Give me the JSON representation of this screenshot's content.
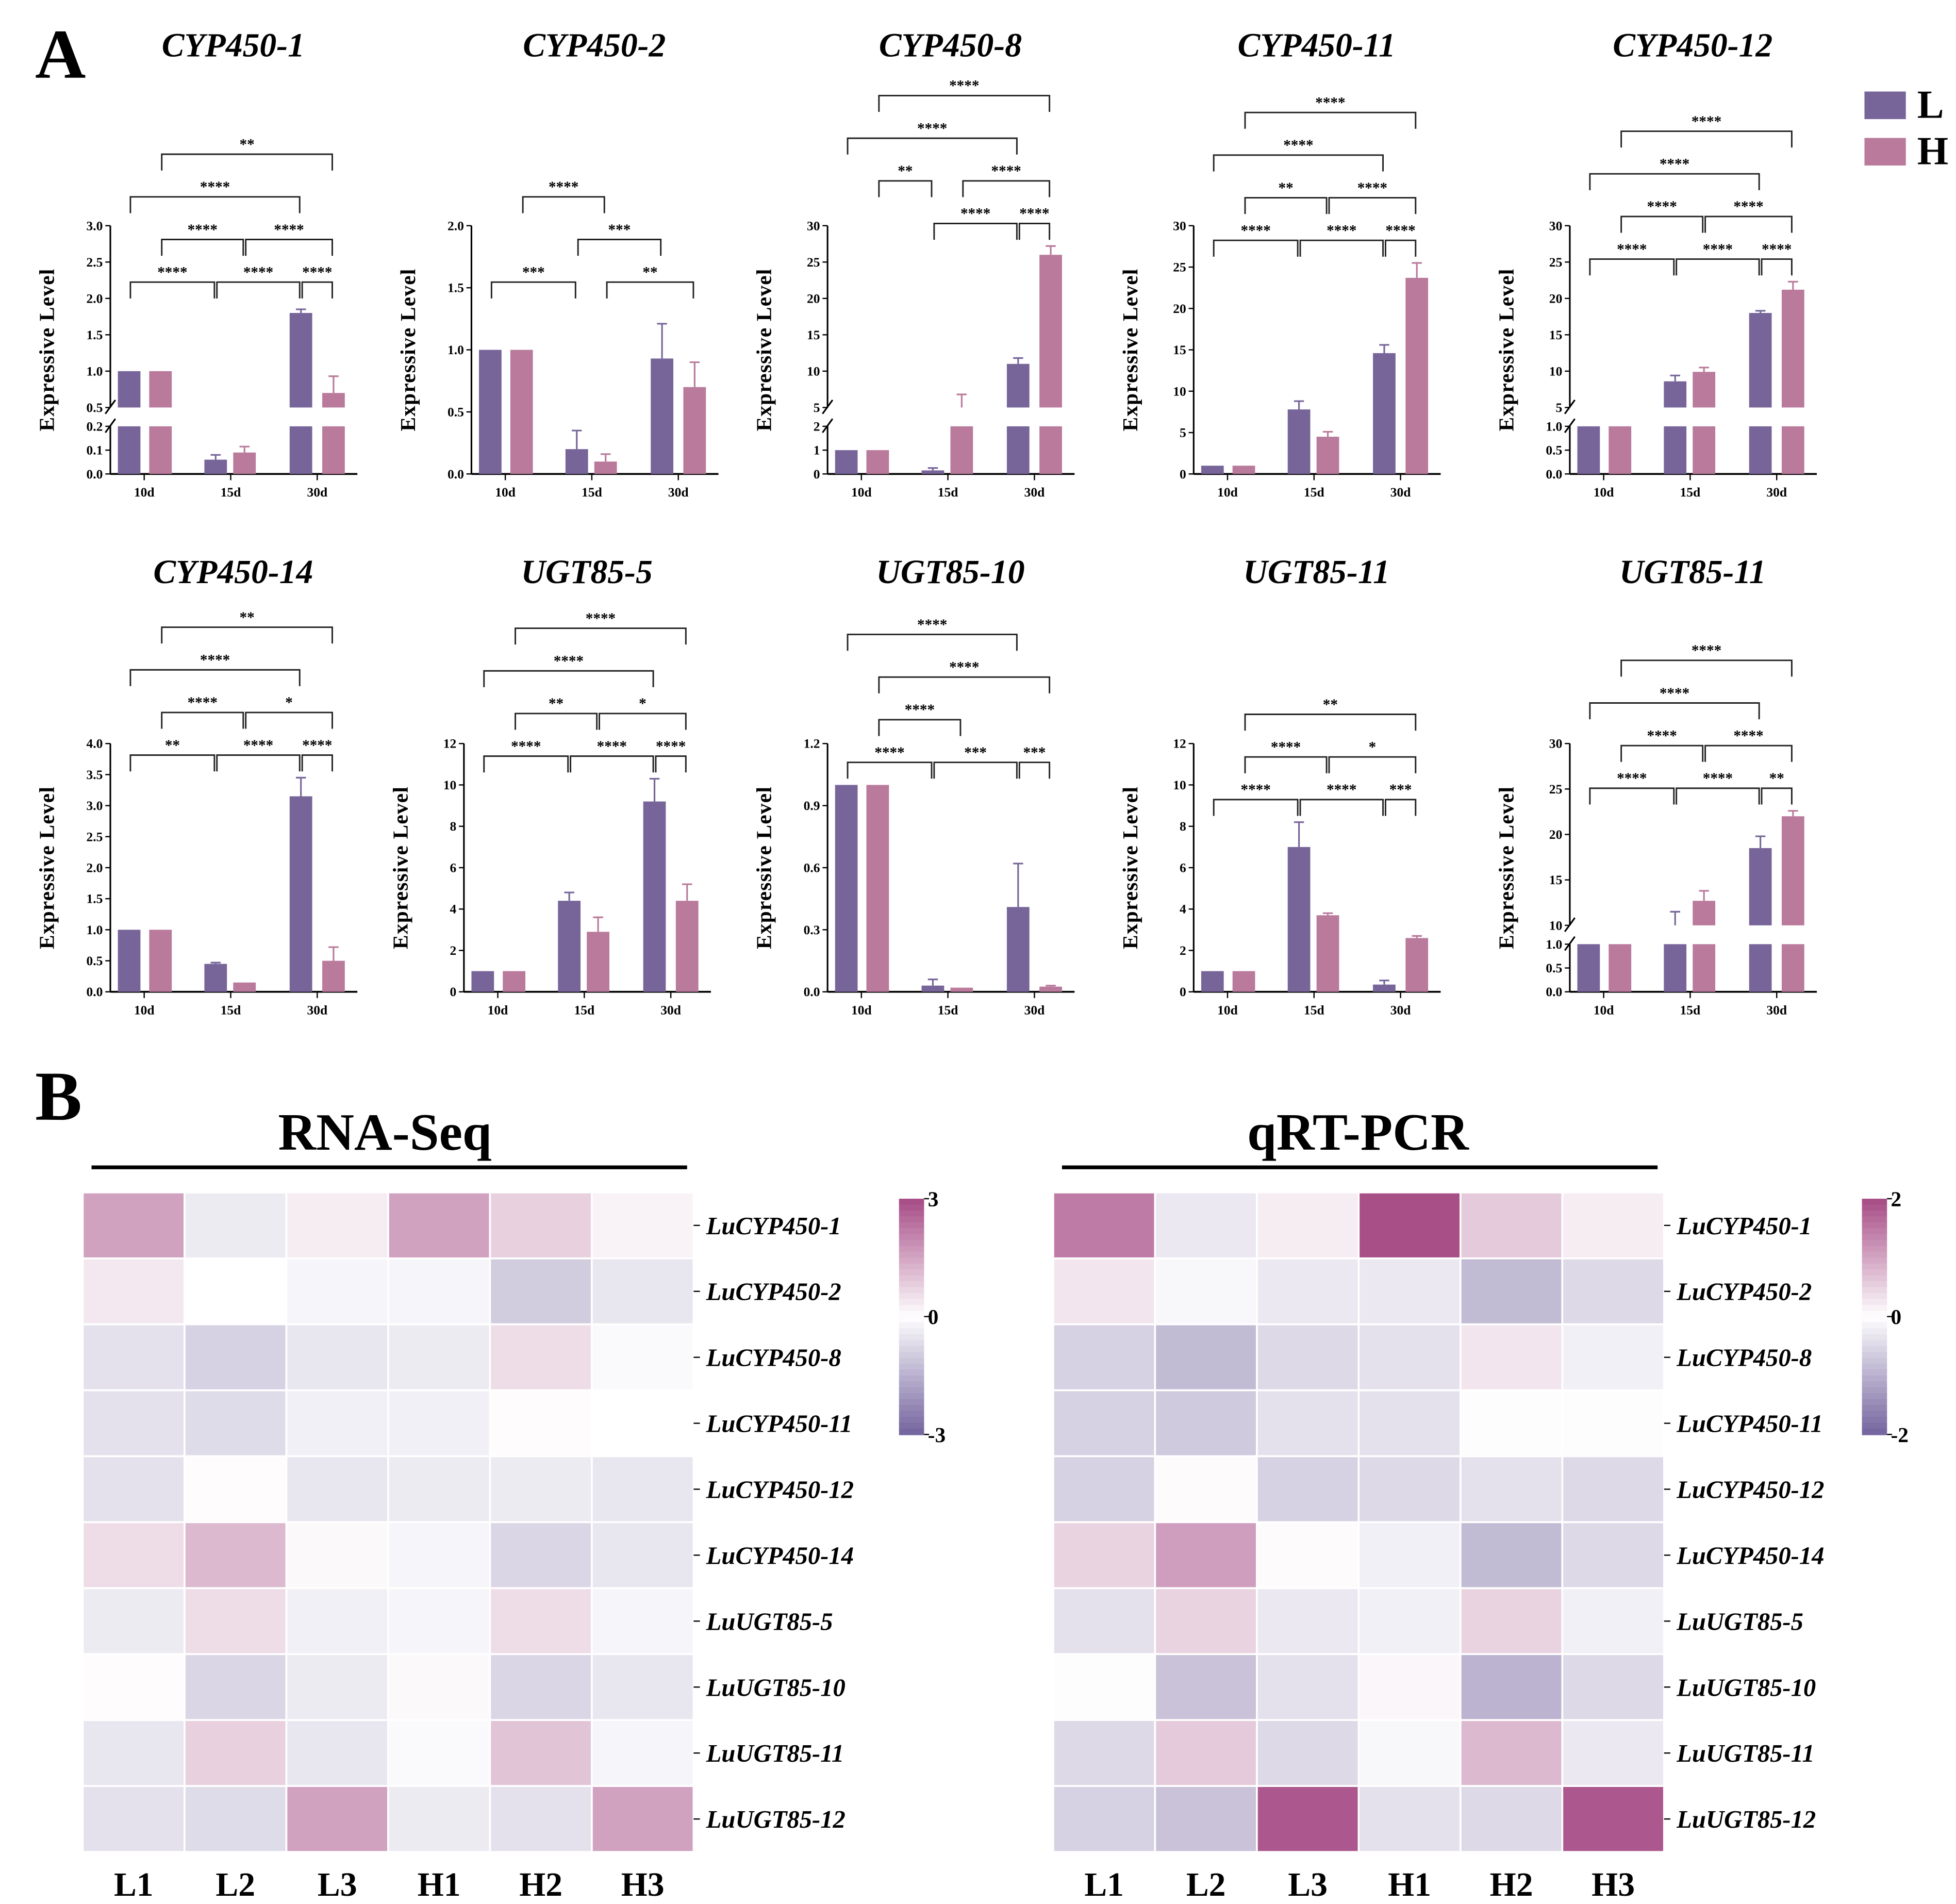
{
  "panel_labels": {
    "a": "A",
    "b": "B"
  },
  "legend": [
    {
      "label": "L",
      "color": "#77659a"
    },
    {
      "label": "H",
      "color": "#b97a9c"
    }
  ],
  "colors": {
    "L": "#77659a",
    "H": "#b97a9c",
    "heat_high": "#a84f88",
    "heat_mid": "#ffffff",
    "heat_low": "#7767a0"
  },
  "chart_data": [
    {
      "type": "bar",
      "title": "CYP450-1",
      "ylabel": "Expressive Level",
      "categories": [
        "10d",
        "15d",
        "30d"
      ],
      "broken": true,
      "yticks_lower": [
        "0.0",
        "0.1",
        "0.2"
      ],
      "yticks": [
        "0.5",
        "1.0",
        "1.5",
        "2.0",
        "2.5",
        "3.0"
      ],
      "series": [
        {
          "name": "L",
          "values": [
            1,
            0.06,
            1.8
          ],
          "errors": [
            0,
            0.02,
            0.05
          ]
        },
        {
          "name": "H",
          "values": [
            1,
            0.09,
            0.7
          ],
          "errors": [
            0,
            0.025,
            0.23
          ]
        }
      ],
      "significance": [
        {
          "from": 0,
          "to": 2,
          "level": 0,
          "label": "****"
        },
        {
          "from": 2,
          "to": 4,
          "level": 0,
          "label": "****"
        },
        {
          "from": 4,
          "to": 5,
          "level": 0,
          "label": "****"
        },
        {
          "from": 1,
          "to": 3,
          "level": 1,
          "label": "****"
        },
        {
          "from": 3,
          "to": 5,
          "level": 1,
          "label": "****"
        },
        {
          "from": 0,
          "to": 4,
          "level": 2,
          "label": "****"
        },
        {
          "from": 1,
          "to": 5,
          "level": 3,
          "label": "**"
        }
      ]
    },
    {
      "type": "bar",
      "title": "CYP450-2",
      "ylabel": "Expressive Level",
      "categories": [
        "10d",
        "15d",
        "30d"
      ],
      "broken": false,
      "yticks": [
        "0.0",
        "0.5",
        "1.0",
        "1.5",
        "2.0"
      ],
      "series": [
        {
          "name": "L",
          "values": [
            1,
            0.2,
            0.93
          ],
          "errors": [
            0,
            0.15,
            0.28
          ]
        },
        {
          "name": "H",
          "values": [
            1,
            0.1,
            0.7
          ],
          "errors": [
            0,
            0.06,
            0.2
          ]
        }
      ],
      "significance": [
        {
          "from": 0,
          "to": 2,
          "level": 0,
          "label": "***"
        },
        {
          "from": 3,
          "to": 5,
          "level": 0,
          "label": "**"
        },
        {
          "from": 2,
          "to": 4,
          "level": 1,
          "label": "***"
        },
        {
          "from": 1,
          "to": 3,
          "level": 2,
          "label": "****"
        }
      ]
    },
    {
      "type": "bar",
      "title": "CYP450-8",
      "ylabel": "Expressive Level",
      "categories": [
        "10d",
        "15d",
        "30d"
      ],
      "broken": true,
      "yticks_lower": [
        "0",
        "1",
        "2"
      ],
      "yticks": [
        "5",
        "10",
        "15",
        "20",
        "25",
        "30"
      ],
      "series": [
        {
          "name": "L",
          "values": [
            1,
            0.15,
            11
          ],
          "errors": [
            0,
            0.1,
            0.8
          ]
        },
        {
          "name": "H",
          "values": [
            1,
            4.8,
            26
          ],
          "errors": [
            0,
            2,
            1.2
          ]
        }
      ],
      "significance": [
        {
          "from": 2,
          "to": 4,
          "level": 0,
          "label": "****"
        },
        {
          "from": 4,
          "to": 5,
          "level": 0,
          "label": "****"
        },
        {
          "from": 1,
          "to": 2,
          "level": 1,
          "label": "**"
        },
        {
          "from": 3,
          "to": 5,
          "level": 1,
          "label": "****"
        },
        {
          "from": 0,
          "to": 4,
          "level": 2,
          "label": "****"
        },
        {
          "from": 1,
          "to": 5,
          "level": 3,
          "label": "****"
        }
      ]
    },
    {
      "type": "bar",
      "title": "CYP450-11",
      "ylabel": "Expressive Level",
      "categories": [
        "10d",
        "15d",
        "30d"
      ],
      "broken": false,
      "yticks": [
        "0",
        "5",
        "10",
        "15",
        "20",
        "25",
        "30"
      ],
      "series": [
        {
          "name": "L",
          "values": [
            1,
            7.8,
            14.6
          ],
          "errors": [
            0,
            1,
            1
          ]
        },
        {
          "name": "H",
          "values": [
            1,
            4.5,
            23.7
          ],
          "errors": [
            0,
            0.6,
            1.8
          ]
        }
      ],
      "significance": [
        {
          "from": 0,
          "to": 2,
          "level": 0,
          "label": "****"
        },
        {
          "from": 2,
          "to": 4,
          "level": 0,
          "label": "****"
        },
        {
          "from": 4,
          "to": 5,
          "level": 0,
          "label": "****"
        },
        {
          "from": 1,
          "to": 3,
          "level": 1,
          "label": "**"
        },
        {
          "from": 3,
          "to": 5,
          "level": 1,
          "label": "****"
        },
        {
          "from": 0,
          "to": 4,
          "level": 2,
          "label": "****"
        },
        {
          "from": 1,
          "to": 5,
          "level": 3,
          "label": "****"
        }
      ]
    },
    {
      "type": "bar",
      "title": "CYP450-12",
      "ylabel": "Expressive Level",
      "categories": [
        "10d",
        "15d",
        "30d"
      ],
      "broken": true,
      "yticks_lower": [
        "0.0",
        "0.5",
        "1.0"
      ],
      "yticks": [
        "5",
        "10",
        "15",
        "20",
        "25",
        "30"
      ],
      "series": [
        {
          "name": "L",
          "values": [
            1,
            8.6,
            18
          ],
          "errors": [
            0,
            0.8,
            0.3
          ]
        },
        {
          "name": "H",
          "values": [
            1,
            9.9,
            21.2
          ],
          "errors": [
            0,
            0.6,
            1.1
          ]
        }
      ],
      "significance": [
        {
          "from": 0,
          "to": 2,
          "level": 0,
          "label": "****"
        },
        {
          "from": 2,
          "to": 4,
          "level": 0,
          "label": "****"
        },
        {
          "from": 4,
          "to": 5,
          "level": 0,
          "label": "****"
        },
        {
          "from": 1,
          "to": 3,
          "level": 1,
          "label": "****"
        },
        {
          "from": 3,
          "to": 5,
          "level": 1,
          "label": "****"
        },
        {
          "from": 0,
          "to": 4,
          "level": 2,
          "label": "****"
        },
        {
          "from": 1,
          "to": 5,
          "level": 3,
          "label": "****"
        }
      ]
    },
    {
      "type": "bar",
      "title": "CYP450-14",
      "ylabel": "Expressive Level",
      "categories": [
        "10d",
        "15d",
        "30d"
      ],
      "broken": false,
      "yticks": [
        "0.0",
        "0.5",
        "1.0",
        "1.5",
        "2.0",
        "2.5",
        "3.0",
        "3.5",
        "4.0"
      ],
      "series": [
        {
          "name": "L",
          "values": [
            1,
            0.45,
            3.15
          ],
          "errors": [
            0,
            0.02,
            0.3
          ]
        },
        {
          "name": "H",
          "values": [
            1,
            0.15,
            0.5
          ],
          "errors": [
            0,
            0,
            0.22
          ]
        }
      ],
      "significance": [
        {
          "from": 0,
          "to": 2,
          "level": 0,
          "label": "**"
        },
        {
          "from": 2,
          "to": 4,
          "level": 0,
          "label": "****"
        },
        {
          "from": 4,
          "to": 5,
          "level": 0,
          "label": "****"
        },
        {
          "from": 1,
          "to": 3,
          "level": 1,
          "label": "****"
        },
        {
          "from": 3,
          "to": 5,
          "level": 1,
          "label": "*"
        },
        {
          "from": 0,
          "to": 4,
          "level": 2,
          "label": "****"
        },
        {
          "from": 1,
          "to": 5,
          "level": 3,
          "label": "**"
        }
      ]
    },
    {
      "type": "bar",
      "title": "UGT85-5",
      "ylabel": "Expressive Level",
      "categories": [
        "10d",
        "15d",
        "30d"
      ],
      "broken": false,
      "yticks": [
        "0",
        "2",
        "4",
        "6",
        "8",
        "10",
        "12"
      ],
      "series": [
        {
          "name": "L",
          "values": [
            1,
            4.4,
            9.2
          ],
          "errors": [
            0,
            0.4,
            1.1
          ]
        },
        {
          "name": "H",
          "values": [
            1,
            2.9,
            4.4
          ],
          "errors": [
            0,
            0.7,
            0.8
          ]
        }
      ],
      "significance": [
        {
          "from": 0,
          "to": 2,
          "level": 0,
          "label": "****"
        },
        {
          "from": 2,
          "to": 4,
          "level": 0,
          "label": "****"
        },
        {
          "from": 4,
          "to": 5,
          "level": 0,
          "label": "****"
        },
        {
          "from": 1,
          "to": 3,
          "level": 1,
          "label": "**"
        },
        {
          "from": 3,
          "to": 5,
          "level": 1,
          "label": "*"
        },
        {
          "from": 0,
          "to": 4,
          "level": 2,
          "label": "****"
        },
        {
          "from": 1,
          "to": 5,
          "level": 3,
          "label": "****"
        }
      ]
    },
    {
      "type": "bar",
      "title": "UGT85-10",
      "ylabel": "Expressive Level",
      "categories": [
        "10d",
        "15d",
        "30d"
      ],
      "broken": false,
      "yticks": [
        "0.0",
        "0.3",
        "0.6",
        "0.9",
        "1.2"
      ],
      "series": [
        {
          "name": "L",
          "values": [
            1,
            0.03,
            0.41
          ],
          "errors": [
            0,
            0.03,
            0.21
          ]
        },
        {
          "name": "H",
          "values": [
            1,
            0.02,
            0.025
          ],
          "errors": [
            0,
            0,
            0.005
          ]
        }
      ],
      "significance": [
        {
          "from": 0,
          "to": 2,
          "level": 0,
          "label": "****"
        },
        {
          "from": 2,
          "to": 4,
          "level": 0,
          "label": "***"
        },
        {
          "from": 4,
          "to": 5,
          "level": 0,
          "label": "***"
        },
        {
          "from": 1,
          "to": 3,
          "level": 1,
          "label": "****"
        },
        {
          "from": 1,
          "to": 5,
          "level": 2,
          "label": "****"
        },
        {
          "from": 0,
          "to": 4,
          "level": 3,
          "label": "****"
        }
      ]
    },
    {
      "type": "bar",
      "title": "UGT85-11",
      "ylabel": "Expressive Level",
      "categories": [
        "10d",
        "15d",
        "30d"
      ],
      "broken": false,
      "yticks": [
        "0",
        "2",
        "4",
        "6",
        "8",
        "10",
        "12"
      ],
      "series": [
        {
          "name": "L",
          "values": [
            1,
            7,
            0.35
          ],
          "errors": [
            0,
            1.2,
            0.2
          ]
        },
        {
          "name": "H",
          "values": [
            1,
            3.7,
            2.6
          ],
          "errors": [
            0,
            0.1,
            0.1
          ]
        }
      ],
      "significance": [
        {
          "from": 0,
          "to": 2,
          "level": 0,
          "label": "****"
        },
        {
          "from": 2,
          "to": 4,
          "level": 0,
          "label": "****"
        },
        {
          "from": 4,
          "to": 5,
          "level": 0,
          "label": "***"
        },
        {
          "from": 1,
          "to": 3,
          "level": 1,
          "label": "****"
        },
        {
          "from": 3,
          "to": 5,
          "level": 1,
          "label": "*"
        },
        {
          "from": 1,
          "to": 5,
          "level": 2,
          "label": "**"
        }
      ]
    },
    {
      "type": "bar",
      "title": "UGT85-11",
      "ylabel": "Expressive Level",
      "categories": [
        "10d",
        "15d",
        "30d"
      ],
      "broken": true,
      "yticks_lower": [
        "0.0",
        "0.5",
        "1.0"
      ],
      "yticks": [
        "10",
        "15",
        "20",
        "25",
        "30"
      ],
      "series": [
        {
          "name": "L",
          "values": [
            1,
            10,
            18.5
          ],
          "errors": [
            0,
            1.5,
            1.3
          ]
        },
        {
          "name": "H",
          "values": [
            1,
            12.7,
            22
          ],
          "errors": [
            0,
            1.1,
            0.6
          ]
        }
      ],
      "significance": [
        {
          "from": 0,
          "to": 2,
          "level": 0,
          "label": "****"
        },
        {
          "from": 2,
          "to": 4,
          "level": 0,
          "label": "****"
        },
        {
          "from": 4,
          "to": 5,
          "level": 0,
          "label": "**"
        },
        {
          "from": 1,
          "to": 3,
          "level": 1,
          "label": "****"
        },
        {
          "from": 3,
          "to": 5,
          "level": 1,
          "label": "****"
        },
        {
          "from": 0,
          "to": 4,
          "level": 2,
          "label": "****"
        },
        {
          "from": 1,
          "to": 5,
          "level": 3,
          "label": "****"
        }
      ]
    },
    {
      "type": "heatmap",
      "title": "RNA-Seq",
      "columns": [
        "L1",
        "L2",
        "L3",
        "H1",
        "H2",
        "H3"
      ],
      "rows": [
        "LuCYP450-1",
        "LuCYP450-2",
        "LuCYP450-8",
        "LuCYP450-11",
        "LuCYP450-12",
        "LuCYP450-14",
        "LuUGT85-5",
        "LuUGT85-10",
        "LuUGT85-11",
        "LuUGT85-12"
      ],
      "scale": {
        "min": -3,
        "max": 3,
        "ticks": [
          "3",
          "0",
          "-3"
        ]
      },
      "values": [
        [
          1.6,
          -0.4,
          0.3,
          1.6,
          0.8,
          0.2
        ],
        [
          0.4,
          0,
          -0.2,
          -0.2,
          -1.0,
          -0.5
        ],
        [
          -0.6,
          -0.9,
          -0.5,
          -0.4,
          0.6,
          -0.1
        ],
        [
          -0.6,
          -0.7,
          -0.3,
          -0.3,
          0.05,
          0
        ],
        [
          -0.6,
          0.05,
          -0.5,
          -0.4,
          -0.4,
          -0.5
        ],
        [
          0.6,
          1.2,
          0.1,
          -0.2,
          -0.8,
          -0.5
        ],
        [
          -0.4,
          0.6,
          -0.3,
          -0.2,
          0.6,
          -0.2
        ],
        [
          0.05,
          -0.8,
          -0.4,
          0.1,
          -0.8,
          -0.5
        ],
        [
          -0.5,
          0.8,
          -0.5,
          -0.1,
          1.0,
          -0.2
        ],
        [
          -0.6,
          -0.7,
          1.6,
          -0.4,
          -0.6,
          1.6
        ]
      ]
    },
    {
      "type": "heatmap",
      "title": "qRT-PCR",
      "columns": [
        "L1",
        "L2",
        "L3",
        "H1",
        "H2",
        "H3"
      ],
      "rows": [
        "LuCYP450-1",
        "LuCYP450-2",
        "LuCYP450-8",
        "LuCYP450-11",
        "LuCYP450-12",
        "LuCYP450-14",
        "LuUGT85-5",
        "LuUGT85-10",
        "LuUGT85-11",
        "LuUGT85-12"
      ],
      "scale": {
        "min": -2,
        "max": 2,
        "ticks": [
          "2",
          "0",
          "-2"
        ]
      },
      "values": [
        [
          1.5,
          -0.3,
          0.2,
          2.0,
          0.6,
          0.2
        ],
        [
          0.3,
          -0.1,
          -0.3,
          -0.3,
          -0.9,
          -0.5
        ],
        [
          -0.6,
          -0.9,
          -0.5,
          -0.4,
          0.3,
          -0.2
        ],
        [
          -0.6,
          -0.7,
          -0.4,
          -0.4,
          0.02,
          0.02
        ],
        [
          -0.6,
          0.05,
          -0.6,
          -0.5,
          -0.4,
          -0.5
        ],
        [
          0.5,
          1.1,
          0.05,
          -0.2,
          -0.9,
          -0.5
        ],
        [
          -0.4,
          0.5,
          -0.3,
          -0.2,
          0.5,
          -0.2
        ],
        [
          0.02,
          -0.8,
          -0.4,
          0.1,
          -1.0,
          -0.5
        ],
        [
          -0.5,
          0.6,
          -0.5,
          -0.1,
          0.8,
          -0.3
        ],
        [
          -0.6,
          -0.8,
          1.9,
          -0.4,
          -0.5,
          1.9
        ]
      ]
    }
  ]
}
